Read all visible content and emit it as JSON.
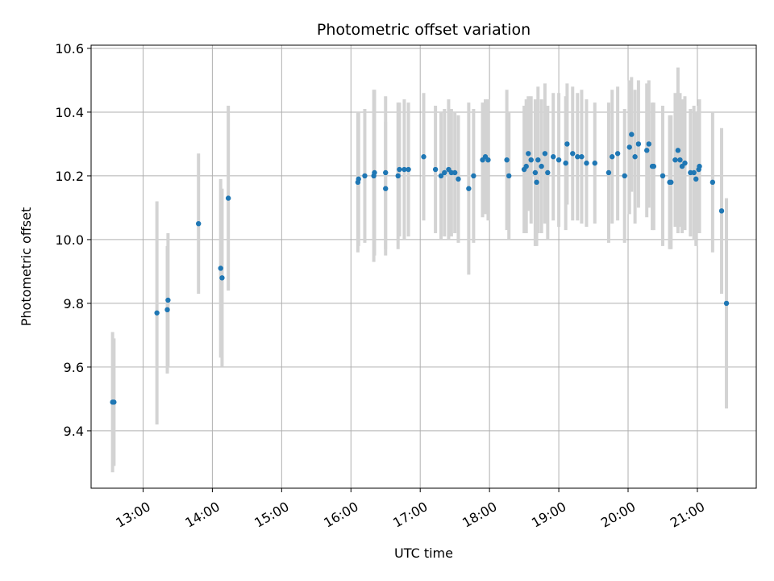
{
  "chart_data": {
    "type": "scatter",
    "title": "Photometric offset variation",
    "xlabel": "UTC time",
    "ylabel": "Photometric offset",
    "x_unit": "hours UTC",
    "xlim": [
      12.25,
      21.85
    ],
    "ylim": [
      9.22,
      10.61
    ],
    "grid": true,
    "x_ticks": [
      {
        "value": 13,
        "label": "13:00"
      },
      {
        "value": 14,
        "label": "14:00"
      },
      {
        "value": 15,
        "label": "15:00"
      },
      {
        "value": 16,
        "label": "16:00"
      },
      {
        "value": 17,
        "label": "17:00"
      },
      {
        "value": 18,
        "label": "18:00"
      },
      {
        "value": 19,
        "label": "19:00"
      },
      {
        "value": 20,
        "label": "20:00"
      },
      {
        "value": 21,
        "label": "21:00"
      }
    ],
    "y_ticks": [
      {
        "value": 9.4,
        "label": "9.4"
      },
      {
        "value": 9.6,
        "label": "9.6"
      },
      {
        "value": 9.8,
        "label": "9.8"
      },
      {
        "value": 10.0,
        "label": "10.0"
      },
      {
        "value": 10.2,
        "label": "10.2"
      },
      {
        "value": 10.4,
        "label": "10.4"
      },
      {
        "value": 10.6,
        "label": "10.6"
      }
    ],
    "point_color": "#1f77b4",
    "errorbar_color": "#d3d3d3",
    "points": [
      [
        12.56,
        9.49,
        0.22
      ],
      [
        12.58,
        9.49,
        0.2
      ],
      [
        13.2,
        9.77,
        0.35
      ],
      [
        13.35,
        9.78,
        0.2
      ],
      [
        13.36,
        9.81,
        0.21
      ],
      [
        13.8,
        10.05,
        0.22
      ],
      [
        14.12,
        9.91,
        0.28
      ],
      [
        14.14,
        9.88,
        0.28
      ],
      [
        14.23,
        10.13,
        0.29
      ],
      [
        16.1,
        10.18,
        0.22
      ],
      [
        16.11,
        10.19,
        0.21
      ],
      [
        16.2,
        10.2,
        0.21
      ],
      [
        16.33,
        10.2,
        0.27
      ],
      [
        16.34,
        10.21,
        0.26
      ],
      [
        16.5,
        10.21,
        0.24
      ],
      [
        16.5,
        10.16,
        0.21
      ],
      [
        16.68,
        10.2,
        0.23
      ],
      [
        16.7,
        10.22,
        0.21
      ],
      [
        16.77,
        10.22,
        0.22
      ],
      [
        16.83,
        10.22,
        0.21
      ],
      [
        17.05,
        10.26,
        0.2
      ],
      [
        17.22,
        10.22,
        0.2
      ],
      [
        17.3,
        10.2,
        0.2
      ],
      [
        17.35,
        10.21,
        0.2
      ],
      [
        17.41,
        10.22,
        0.22
      ],
      [
        17.45,
        10.21,
        0.2
      ],
      [
        17.5,
        10.21,
        0.19
      ],
      [
        17.55,
        10.19,
        0.2
      ],
      [
        17.7,
        10.16,
        0.27
      ],
      [
        17.77,
        10.2,
        0.21
      ],
      [
        17.9,
        10.25,
        0.18
      ],
      [
        17.94,
        10.26,
        0.18
      ],
      [
        17.98,
        10.25,
        0.19
      ],
      [
        18.25,
        10.25,
        0.22
      ],
      [
        18.28,
        10.2,
        0.2
      ],
      [
        18.5,
        10.22,
        0.2
      ],
      [
        18.53,
        10.23,
        0.21
      ],
      [
        18.56,
        10.27,
        0.18
      ],
      [
        18.6,
        10.25,
        0.2
      ],
      [
        18.66,
        10.21,
        0.23
      ],
      [
        18.68,
        10.18,
        0.2
      ],
      [
        18.7,
        10.25,
        0.23
      ],
      [
        18.75,
        10.23,
        0.21
      ],
      [
        18.8,
        10.27,
        0.22
      ],
      [
        18.84,
        10.21,
        0.21
      ],
      [
        18.92,
        10.26,
        0.2
      ],
      [
        19.0,
        10.25,
        0.21
      ],
      [
        19.1,
        10.24,
        0.21
      ],
      [
        19.12,
        10.3,
        0.19
      ],
      [
        19.2,
        10.27,
        0.21
      ],
      [
        19.27,
        10.26,
        0.2
      ],
      [
        19.33,
        10.26,
        0.21
      ],
      [
        19.4,
        10.24,
        0.2
      ],
      [
        19.52,
        10.24,
        0.19
      ],
      [
        19.72,
        10.21,
        0.22
      ],
      [
        19.77,
        10.26,
        0.21
      ],
      [
        19.85,
        10.27,
        0.21
      ],
      [
        19.95,
        10.2,
        0.21
      ],
      [
        20.02,
        10.29,
        0.21
      ],
      [
        20.05,
        10.33,
        0.18
      ],
      [
        20.1,
        10.26,
        0.21
      ],
      [
        20.15,
        10.3,
        0.2
      ],
      [
        20.27,
        10.28,
        0.21
      ],
      [
        20.3,
        10.3,
        0.2
      ],
      [
        20.35,
        10.23,
        0.2
      ],
      [
        20.37,
        10.23,
        0.2
      ],
      [
        20.5,
        10.2,
        0.22
      ],
      [
        20.6,
        10.18,
        0.21
      ],
      [
        20.62,
        10.18,
        0.21
      ],
      [
        20.68,
        10.25,
        0.21
      ],
      [
        20.72,
        10.28,
        0.26
      ],
      [
        20.75,
        10.25,
        0.21
      ],
      [
        20.78,
        10.23,
        0.21
      ],
      [
        20.82,
        10.24,
        0.21
      ],
      [
        20.9,
        10.21,
        0.2
      ],
      [
        20.95,
        10.21,
        0.21
      ],
      [
        20.98,
        10.19,
        0.21
      ],
      [
        21.02,
        10.22,
        0.2
      ],
      [
        21.03,
        10.23,
        0.21
      ],
      [
        21.22,
        10.18,
        0.22
      ],
      [
        21.35,
        10.09,
        0.26
      ],
      [
        21.42,
        9.8,
        0.33
      ]
    ]
  }
}
